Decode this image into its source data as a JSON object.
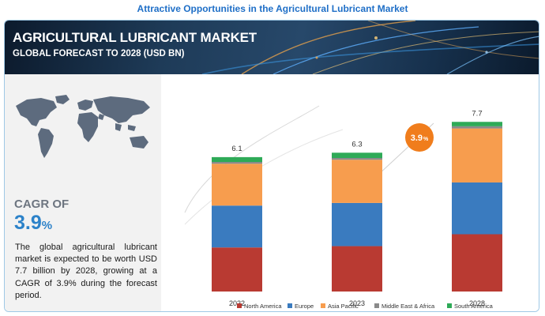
{
  "page_title": "Attractive Opportunities in the Agricultural Lubricant Market",
  "banner": {
    "title": "AGRICULTURAL LUBRICANT MARKET",
    "subtitle": "GLOBAL FORECAST TO 2028 (USD BN)"
  },
  "sidebar": {
    "cagr_label": "CAGR OF",
    "cagr_value": "3.9",
    "cagr_unit": "%",
    "summary": "The global agricultural lubricant market is expected to be worth USD 7.7 billion by 2028, growing at a CAGR of 3.9% during the forecast period."
  },
  "colors": {
    "north_america": "#b93a32",
    "europe": "#3a7bbf",
    "asia_pacific": "#f79d4e",
    "middle_east_africa": "#8a8a8a",
    "south_america": "#2eaa57",
    "cagr_badge": "#f07d1c",
    "accent_blue": "#2c82c9"
  },
  "chart_data": {
    "type": "bar",
    "stacked": true,
    "title": "Agricultural Lubricant Market, Global Forecast to 2028 (USD BN)",
    "categories": [
      "2022",
      "2023",
      "2028"
    ],
    "totals": [
      6.1,
      6.3,
      7.7
    ],
    "total_labels": [
      "6.1",
      "6.3",
      "7.7"
    ],
    "ylim": [
      0,
      8
    ],
    "series": [
      {
        "name": "North America",
        "values": [
          2.0,
          2.06,
          2.6
        ],
        "color": "#b93a32"
      },
      {
        "name": "Europe",
        "values": [
          1.9,
          1.96,
          2.35
        ],
        "color": "#3a7bbf"
      },
      {
        "name": "Asia Pacific",
        "values": [
          1.9,
          1.96,
          2.45
        ],
        "color": "#f79d4e"
      },
      {
        "name": "Middle East & Africa",
        "values": [
          0.08,
          0.08,
          0.1
        ],
        "color": "#8a8a8a"
      },
      {
        "name": "South America",
        "values": [
          0.22,
          0.24,
          0.2
        ],
        "color": "#2eaa57"
      }
    ],
    "annotation": {
      "value": "3.9",
      "unit": "%"
    },
    "legend_position": "bottom"
  }
}
